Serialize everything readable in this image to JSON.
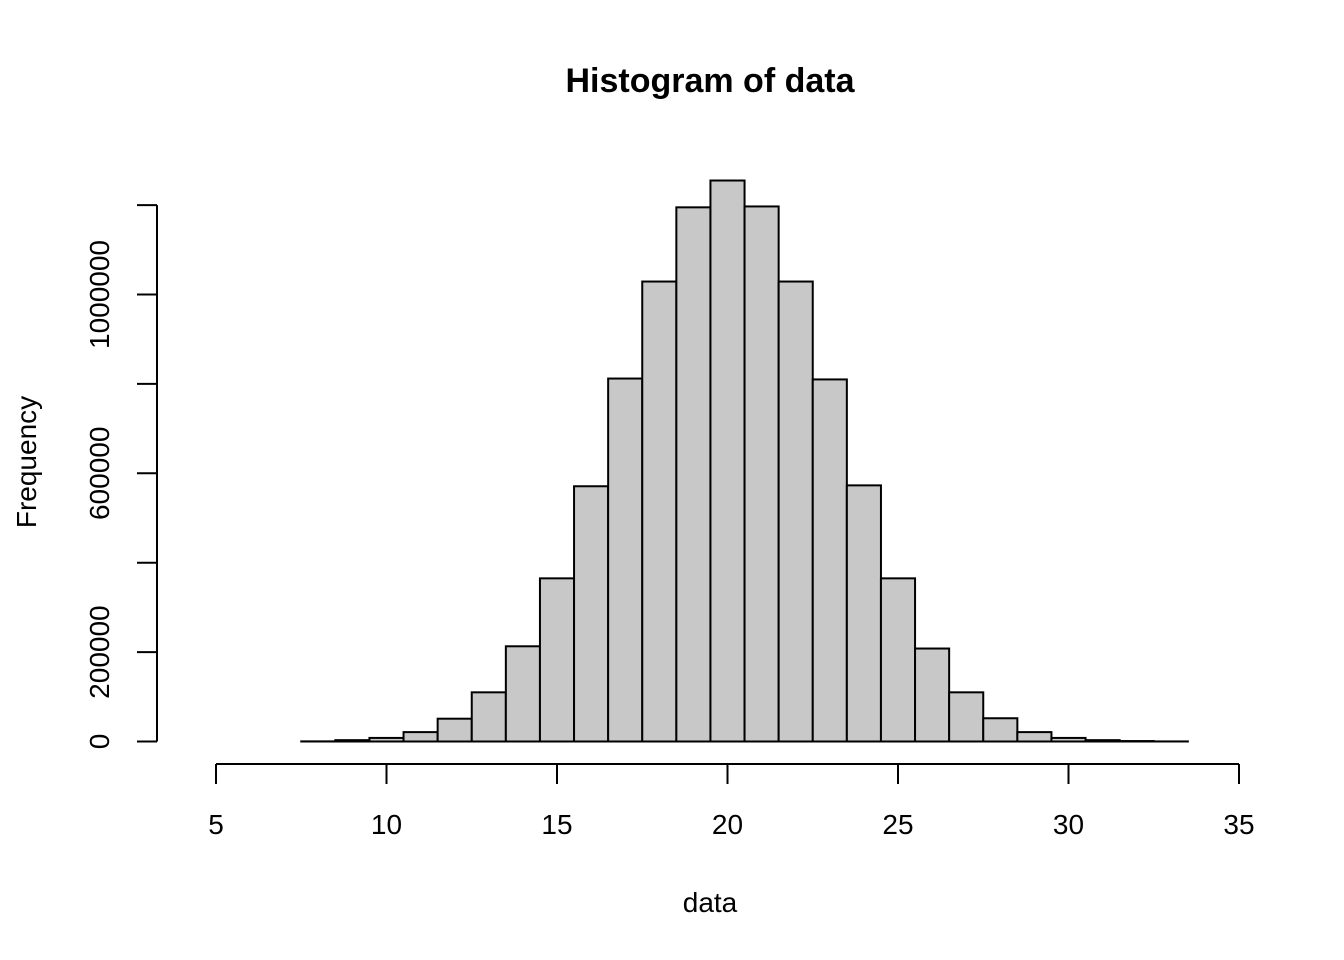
{
  "chart_data": {
    "type": "bar",
    "title": "Histogram of data",
    "xlabel": "data",
    "ylabel": "Frequency",
    "bin_edges": [
      4.5,
      5.5,
      6.5,
      7.5,
      8.5,
      9.5,
      10.5,
      11.5,
      12.5,
      13.5,
      14.5,
      15.5,
      16.5,
      17.5,
      18.5,
      19.5,
      20.5,
      21.5,
      22.5,
      23.5,
      24.5,
      25.5,
      26.5,
      27.5,
      28.5,
      29.5,
      30.5,
      31.5,
      32.5,
      33.5,
      34.5
    ],
    "values": [
      0,
      0,
      0,
      300,
      3000,
      8000,
      21000,
      51000,
      110000,
      213000,
      365000,
      571000,
      812000,
      1029000,
      1195000,
      1255000,
      1197000,
      1029000,
      810000,
      573000,
      365000,
      208000,
      110000,
      52000,
      21000,
      8000,
      3000,
      1000,
      200,
      0
    ],
    "x_ticks": [
      5,
      10,
      15,
      20,
      25,
      30,
      35
    ],
    "x_tick_labels": [
      "5",
      "10",
      "15",
      "20",
      "25",
      "30",
      "35"
    ],
    "y_ticks": [
      0,
      200000,
      400000,
      600000,
      800000,
      1000000,
      1200000
    ],
    "y_tick_labels": [
      "0",
      "200000",
      "",
      "600000",
      "",
      "1000000",
      ""
    ],
    "xlim": [
      5,
      35
    ],
    "ylim": [
      0,
      1200000
    ],
    "grid": false,
    "bar_color": "#c8c8c8",
    "edge_color": "#000000"
  }
}
